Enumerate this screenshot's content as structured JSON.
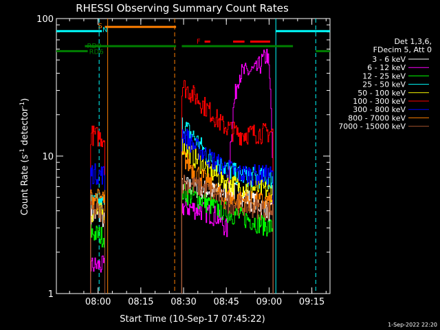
{
  "chart_data": {
    "type": "line",
    "title": "RHESSI Observing Summary Count Rates",
    "xlabel": "Start Time (10-Sep-17 07:45:22)",
    "ylabel": "Count Rate (s",
    "ylabel_sup": "-1",
    "ylabel_rest": " detector",
    "ylabel_sup2": "-1",
    "ylabel_close": ")",
    "yscale": "log",
    "ylim": [
      1,
      100
    ],
    "xlim_minutes": [
      0,
      96
    ],
    "x_ticks": [
      "08:00",
      "08:15",
      "08:30",
      "08:45",
      "09:00",
      "09:15"
    ],
    "y_ticks": [
      "1",
      "10",
      "100"
    ],
    "timestamp": "1-Sep-2022 22:20",
    "legend_header": [
      "Det 1,3,6,",
      "FDecim 5, Att 0"
    ],
    "series": [
      {
        "name": "3 - 6 keV",
        "color": "#ffffff",
        "segments": [
          [
            [
              12,
              3.8
            ],
            [
              17,
              3.6
            ]
          ],
          [
            [
              44,
              6.2
            ],
            [
              51,
              5.8
            ],
            [
              56,
              5.5
            ],
            [
              62,
              5.6
            ],
            [
              76,
              3.8
            ]
          ]
        ]
      },
      {
        "name": "6 - 12 keV",
        "color": "#ff00ff",
        "segments": [
          [
            [
              12,
              1.6
            ],
            [
              17,
              1.6
            ]
          ],
          [
            [
              44,
              4.3
            ],
            [
              50,
              4.1
            ],
            [
              56,
              3.7
            ],
            [
              60,
              2.9
            ],
            [
              64,
              40
            ],
            [
              70,
              42
            ],
            [
              74,
              55
            ],
            [
              76,
              2.0
            ]
          ]
        ]
      },
      {
        "name": "12 - 25 keV",
        "color": "#00ff00",
        "segments": [
          [
            [
              12,
              2.8
            ],
            [
              17,
              2.6
            ]
          ],
          [
            [
              44,
              5.5
            ],
            [
              50,
              4.9
            ],
            [
              56,
              4.2
            ],
            [
              62,
              3.8
            ],
            [
              76,
              3.0
            ]
          ]
        ]
      },
      {
        "name": "25 - 50 keV",
        "color": "#00ffff",
        "segments": [
          [
            [
              12,
              4.6
            ],
            [
              17,
              4.5
            ]
          ],
          [
            [
              44,
              17
            ],
            [
              48,
              14
            ],
            [
              53,
              10
            ],
            [
              58,
              8.5
            ],
            [
              64,
              7.3
            ],
            [
              76,
              6.8
            ]
          ]
        ]
      },
      {
        "name": "50 - 100 keV",
        "color": "#ffff00",
        "segments": [
          [
            [
              12,
              3.9
            ],
            [
              17,
              3.9
            ]
          ],
          [
            [
              44,
              12
            ],
            [
              48,
              10
            ],
            [
              53,
              8
            ],
            [
              58,
              6.8
            ],
            [
              64,
              6.0
            ],
            [
              76,
              5.6
            ]
          ]
        ]
      },
      {
        "name": "100 - 300 keV",
        "color": "#ff0000",
        "segments": [
          [
            [
              12,
              14.5
            ],
            [
              17,
              13.5
            ]
          ],
          [
            [
              44,
              33
            ],
            [
              48,
              28
            ],
            [
              53,
              22
            ],
            [
              58,
              17
            ],
            [
              64,
              14.5
            ],
            [
              76,
              15
            ]
          ]
        ]
      },
      {
        "name": "300 - 800 keV",
        "color": "#0000ff",
        "segments": [
          [
            [
              12,
              7.6
            ],
            [
              17,
              7.4
            ]
          ],
          [
            [
              44,
              15
            ],
            [
              48,
              12
            ],
            [
              53,
              10
            ],
            [
              58,
              8.5
            ],
            [
              64,
              7.5
            ],
            [
              76,
              7.3
            ]
          ]
        ]
      },
      {
        "name": "800 - 7000 keV",
        "color": "#ff7f00",
        "segments": [
          [
            [
              12,
              5.0
            ],
            [
              17,
              4.9
            ]
          ],
          [
            [
              44,
              10
            ],
            [
              48,
              8
            ],
            [
              53,
              6.4
            ],
            [
              58,
              5.0
            ],
            [
              64,
              4.8
            ],
            [
              76,
              4.6
            ]
          ]
        ]
      },
      {
        "name": "7000 - 15000 keV",
        "color": "#a0522d",
        "segments": [
          [
            [
              12,
              4.0
            ],
            [
              17,
              3.9
            ]
          ],
          [
            [
              44,
              6.5
            ],
            [
              52,
              5.8
            ],
            [
              60,
              4.6
            ],
            [
              76,
              4.0
            ]
          ]
        ]
      }
    ],
    "flag_bars": [
      {
        "label": "",
        "color": "#00ffff",
        "y": 81,
        "ranges": [
          [
            0,
            16
          ],
          [
            77,
            96
          ]
        ]
      },
      {
        "label": "S",
        "color": "#ff7f00",
        "y": 87,
        "ranges": [
          [
            17,
            42
          ]
        ]
      },
      {
        "label": "RD0",
        "color": "#008000",
        "y": 63,
        "ranges": [
          [
            10,
            42
          ],
          [
            44,
            83
          ]
        ]
      },
      {
        "label": "RD6",
        "color": "#008000",
        "y": 58,
        "ranges": [
          [
            0,
            11
          ],
          [
            91,
            96
          ]
        ]
      },
      {
        "label": "F",
        "color": "#ff0000",
        "y": 68,
        "ranges": [
          [
            52,
            54
          ],
          [
            62,
            66
          ],
          [
            68,
            75
          ]
        ]
      }
    ],
    "orange_lines_minutes": [
      18
    ],
    "orange_dashed_minutes": [
      41.5
    ],
    "cyan_dashed_minutes": [
      15,
      91
    ],
    "cyan_solid_minutes": [
      77
    ],
    "n_label": "N"
  }
}
